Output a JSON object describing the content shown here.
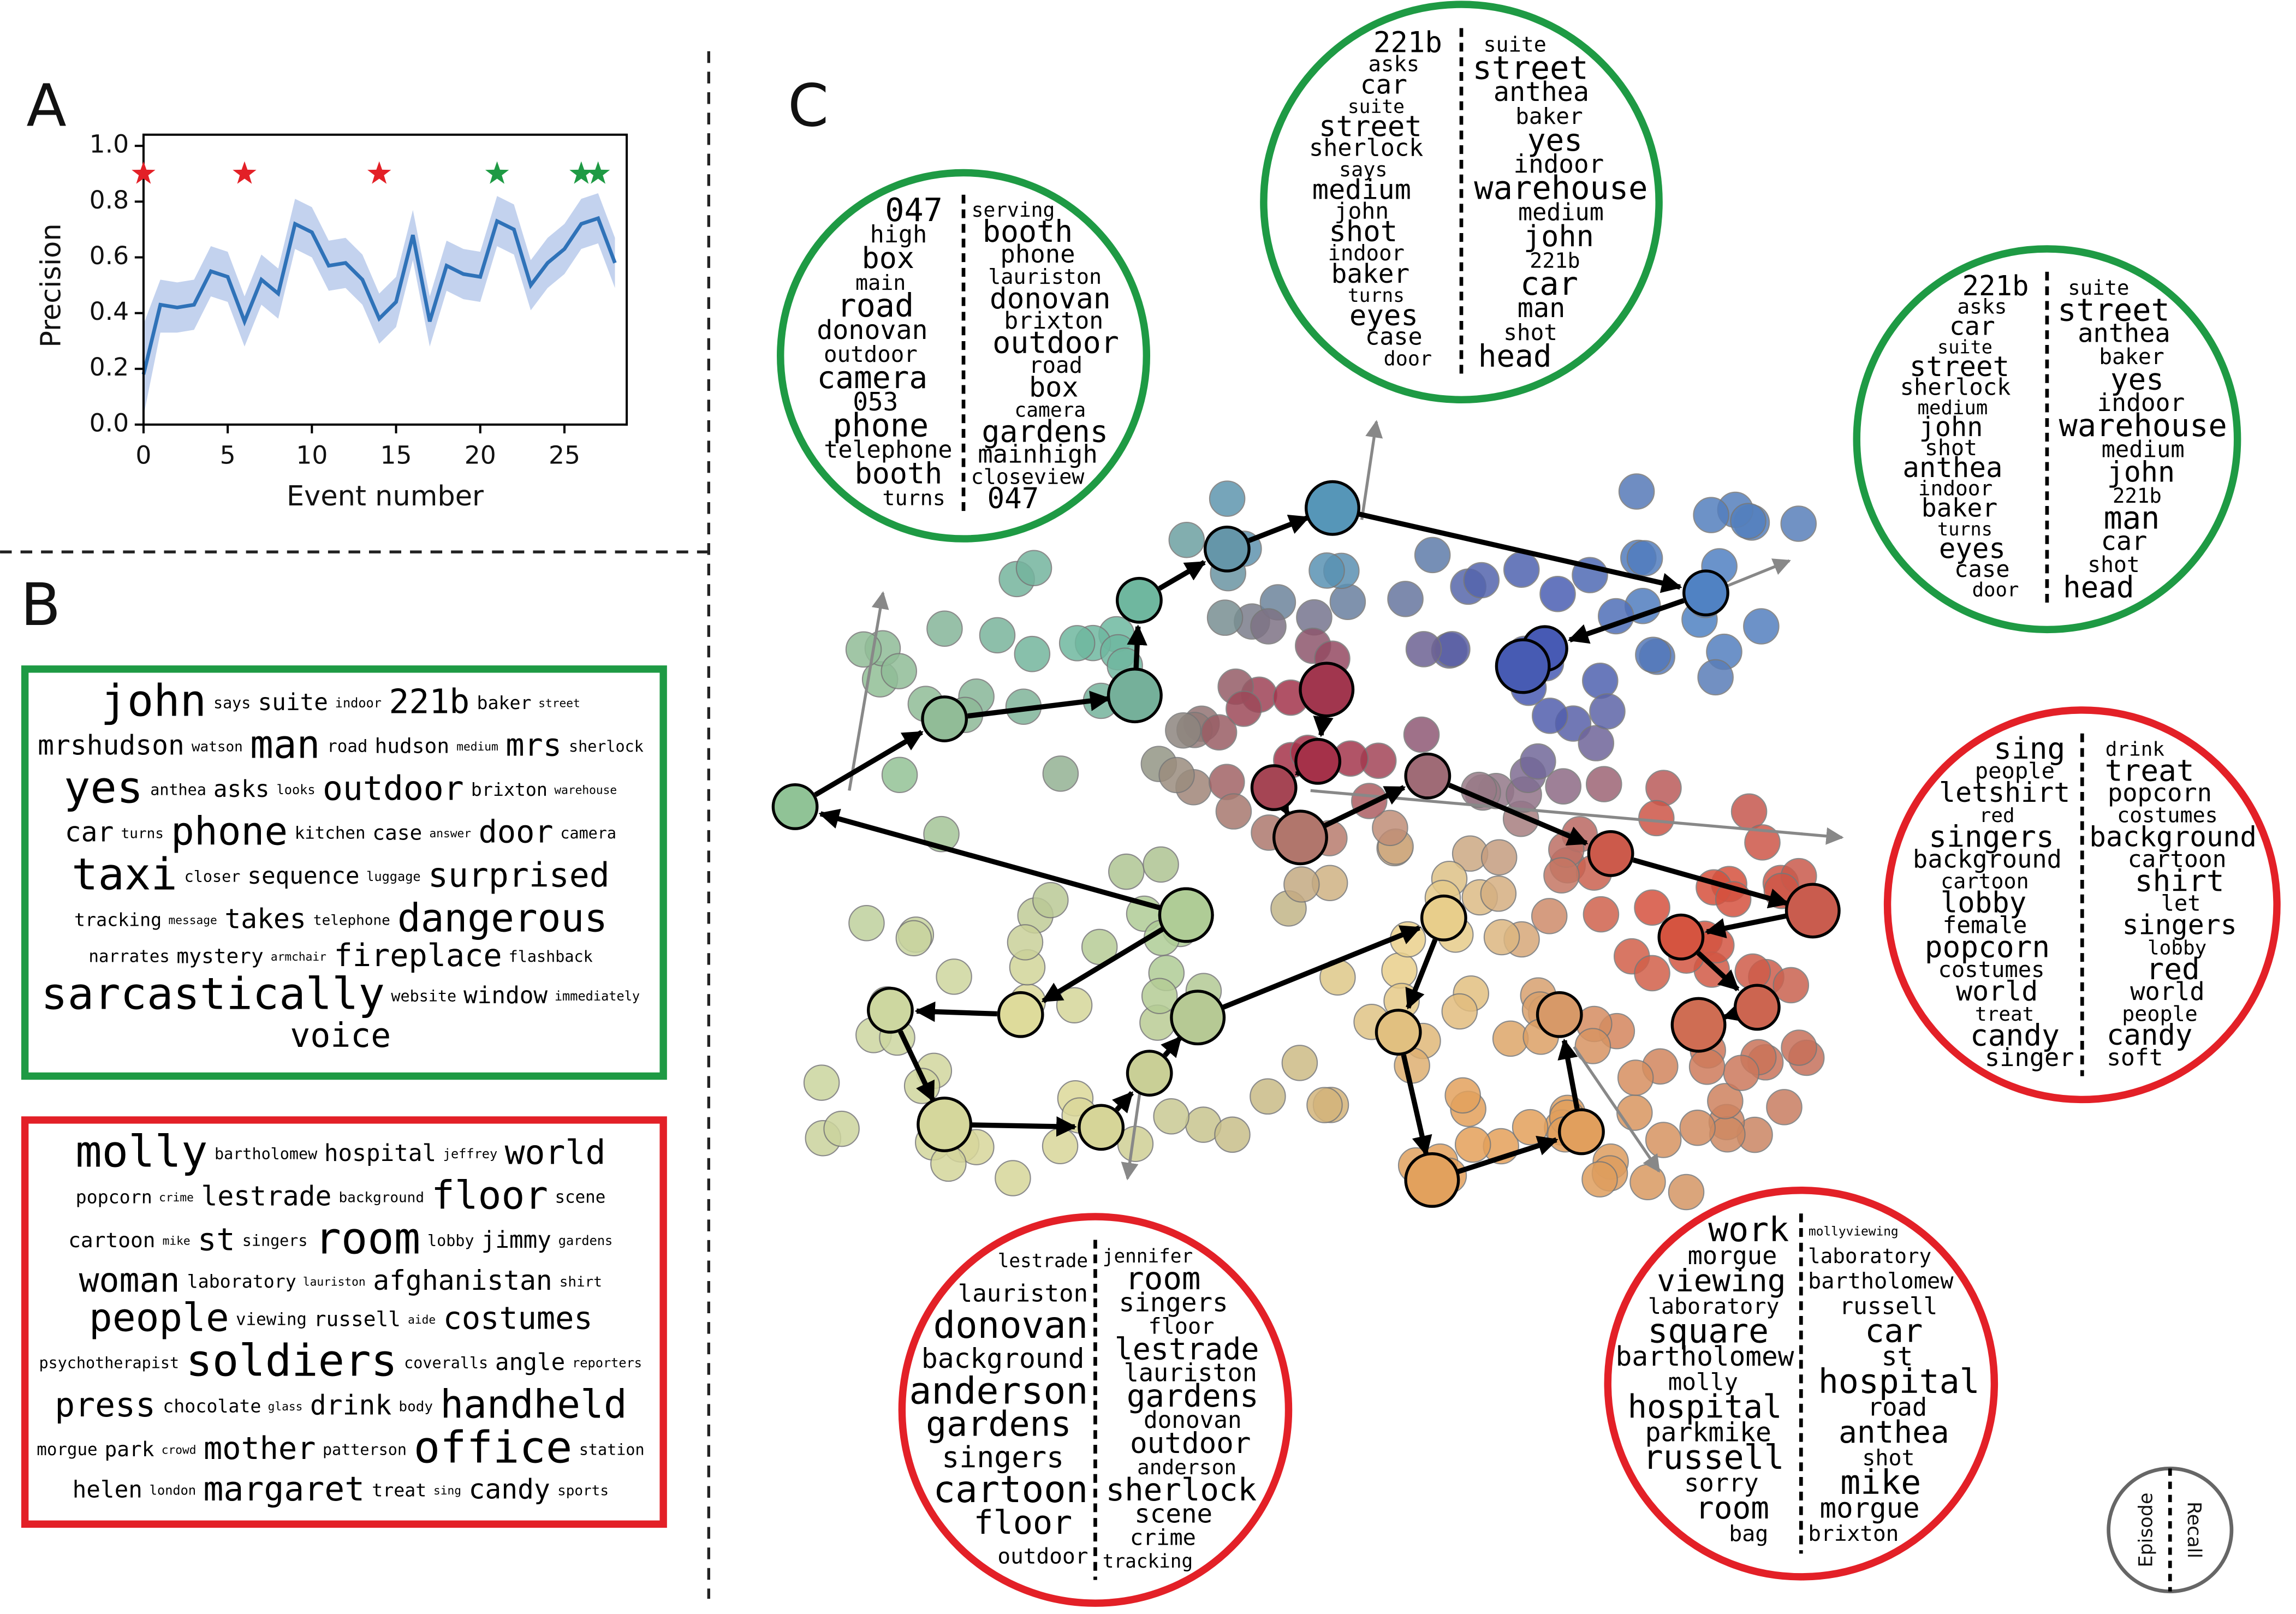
{
  "panel_labels": [
    "A",
    "B",
    "C"
  ],
  "chart_data": {
    "type": "line",
    "xlabel": "Event number",
    "ylabel": "Precision",
    "x": [
      0,
      1,
      2,
      3,
      4,
      5,
      6,
      7,
      8,
      9,
      10,
      11,
      12,
      13,
      14,
      15,
      16,
      17,
      18,
      19,
      20,
      21,
      22,
      23,
      24,
      25,
      26,
      27,
      28
    ],
    "values": [
      0.18,
      0.43,
      0.42,
      0.43,
      0.55,
      0.53,
      0.37,
      0.52,
      0.47,
      0.72,
      0.69,
      0.57,
      0.58,
      0.52,
      0.38,
      0.44,
      0.68,
      0.37,
      0.57,
      0.54,
      0.53,
      0.73,
      0.7,
      0.5,
      0.58,
      0.63,
      0.72,
      0.74,
      0.58
    ],
    "band_lower": [
      0.03,
      0.33,
      0.33,
      0.34,
      0.46,
      0.44,
      0.28,
      0.43,
      0.38,
      0.63,
      0.6,
      0.48,
      0.49,
      0.43,
      0.29,
      0.35,
      0.59,
      0.28,
      0.48,
      0.45,
      0.44,
      0.64,
      0.61,
      0.41,
      0.49,
      0.54,
      0.63,
      0.65,
      0.49
    ],
    "band_upper": [
      0.36,
      0.52,
      0.51,
      0.52,
      0.64,
      0.62,
      0.46,
      0.61,
      0.56,
      0.81,
      0.78,
      0.66,
      0.67,
      0.61,
      0.47,
      0.53,
      0.77,
      0.46,
      0.66,
      0.63,
      0.62,
      0.82,
      0.79,
      0.59,
      0.67,
      0.72,
      0.81,
      0.83,
      0.67
    ],
    "color": "#2f72b8",
    "band_color": "#c3d2ee",
    "markers": [
      {
        "x": 0,
        "y": 0.9,
        "color": "#e32027"
      },
      {
        "x": 6,
        "y": 0.9,
        "color": "#e32027"
      },
      {
        "x": 14,
        "y": 0.9,
        "color": "#e32027"
      },
      {
        "x": 21,
        "y": 0.9,
        "color": "#1e9a44"
      },
      {
        "x": 26,
        "y": 0.9,
        "color": "#1e9a44"
      },
      {
        "x": 27,
        "y": 0.9,
        "color": "#1e9a44"
      }
    ],
    "xlim": [
      0,
      28.7
    ],
    "ylim": [
      0,
      1.04
    ],
    "xticks": [
      0,
      5,
      10,
      15,
      20,
      25
    ],
    "yticks": [
      {
        "value": 0,
        "label": "0.0"
      },
      {
        "value": 0.2,
        "label": "0.2"
      },
      {
        "value": 0.4,
        "label": "0.4"
      },
      {
        "value": 0.6,
        "label": "0.6"
      },
      {
        "value": 0.8,
        "label": "0.8"
      },
      {
        "value": 1,
        "label": "1.0"
      }
    ]
  },
  "word_clouds": {
    "boxes": [
      {
        "color": "#1e9a44",
        "words": [
          "john",
          "says",
          "suite",
          "indoor",
          "221b",
          "baker",
          "street",
          "mrshudson",
          "watson",
          "man",
          "road",
          "hudson",
          "medium",
          "mrs",
          "sherlock",
          "yes",
          "anthea",
          "asks",
          "looks",
          "outdoor",
          "brixton",
          "warehouse",
          "car",
          "turns",
          "phone",
          "kitchen",
          "case",
          "answer",
          "door",
          "camera",
          "taxi",
          "closer",
          "sequence",
          "luggage",
          "surprised",
          "tracking",
          "message",
          "takes",
          "telephone",
          "dangerous",
          "narrates",
          "mystery",
          "armchair",
          "fireplace",
          "flashback",
          "sarcastically",
          "website",
          "window",
          "immediately",
          "voice"
        ]
      },
      {
        "color": "#e32027",
        "words": [
          "molly",
          "bartholomew",
          "hospital",
          "jeffrey",
          "world",
          "popcorn",
          "crime",
          "lestrade",
          "background",
          "floor",
          "scene",
          "cartoon",
          "mike",
          "st",
          "singers",
          "room",
          "lobby",
          "jimmy",
          "gardens",
          "woman",
          "laboratory",
          "lauriston",
          "afghanistan",
          "shirt",
          "people",
          "viewing",
          "russell",
          "aide",
          "costumes",
          "psychotherapist",
          "soldiers",
          "coveralls",
          "angle",
          "reporters",
          "press",
          "chocolate",
          "glass",
          "drink",
          "body",
          "handheld",
          "morgue",
          "park",
          "crowd",
          "mother",
          "patterson",
          "office",
          "station",
          "helen",
          "london",
          "margaret",
          "treat",
          "sing",
          "candy",
          "sports"
        ]
      }
    ],
    "circles": [
      {
        "color": "#1e9a44",
        "episode": [
          "047",
          "high",
          "box",
          "main",
          "road",
          "donovan",
          "outdoor",
          "camera",
          "053",
          "phone",
          "telephone",
          "booth",
          "turns"
        ],
        "recall": [
          "serving",
          "booth",
          "phone",
          "lauriston",
          "donovan",
          "brixton",
          "outdoor",
          "road",
          "box",
          "camera",
          "gardens",
          "mainhigh",
          "closeview",
          "047"
        ]
      },
      {
        "color": "#1e9a44",
        "episode": [
          "221b",
          "asks",
          "car",
          "suite",
          "street",
          "sherlock",
          "says",
          "medium",
          "john",
          "shot",
          "indoor",
          "baker",
          "turns",
          "eyes",
          "case",
          "door"
        ],
        "recall": [
          "suite",
          "street",
          "anthea",
          "baker",
          "yes",
          "indoor",
          "warehouse",
          "medium",
          "john",
          "221b",
          "car",
          "man",
          "shot",
          "head"
        ]
      },
      {
        "color": "#1e9a44",
        "episode": [
          "221b",
          "asks",
          "car",
          "suite",
          "street",
          "sherlock",
          "medium",
          "john",
          "shot",
          "anthea",
          "indoor",
          "baker",
          "turns",
          "eyes",
          "case",
          "door"
        ],
        "recall": [
          "suite",
          "street",
          "anthea",
          "baker",
          "yes",
          "indoor",
          "warehouse",
          "medium",
          "john",
          "221b",
          "man",
          "car",
          "shot",
          "head"
        ]
      },
      {
        "color": "#e32027",
        "episode": [
          "sing",
          "people",
          "letshirt",
          "red",
          "singers",
          "background",
          "cartoon",
          "lobby",
          "female",
          "popcorn",
          "costumes",
          "world",
          "treat",
          "candy",
          "singer"
        ],
        "recall": [
          "drink",
          "treat",
          "popcorn",
          "costumes",
          "background",
          "cartoon",
          "shirt",
          "let",
          "singers",
          "lobby",
          "red",
          "world",
          "people",
          "candy",
          "soft"
        ]
      },
      {
        "color": "#e32027",
        "episode": [
          "lestrade",
          "lauriston",
          "donovan",
          "background",
          "anderson",
          "gardens",
          "singers",
          "cartoon",
          "floor",
          "outdoor"
        ],
        "recall": [
          "jennifer",
          "room",
          "singers",
          "floor",
          "lestrade",
          "lauriston",
          "gardens",
          "donovan",
          "outdoor",
          "anderson",
          "sherlock",
          "scene",
          "crime",
          "tracking"
        ]
      },
      {
        "color": "#e32027",
        "episode": [
          "work",
          "morgue",
          "viewing",
          "laboratory",
          "square",
          "bartholomew",
          "molly",
          "hospital",
          "parkmike",
          "russell",
          "sorry",
          "room",
          "bag"
        ],
        "recall": [
          "mollyviewing",
          "laboratory",
          "bartholomew",
          "russell",
          "car",
          "st",
          "hospital",
          "road",
          "anthea",
          "shot",
          "mike",
          "morgue",
          "brixton"
        ]
      }
    ],
    "key": {
      "left": "Episode",
      "right": "Recall"
    }
  }
}
